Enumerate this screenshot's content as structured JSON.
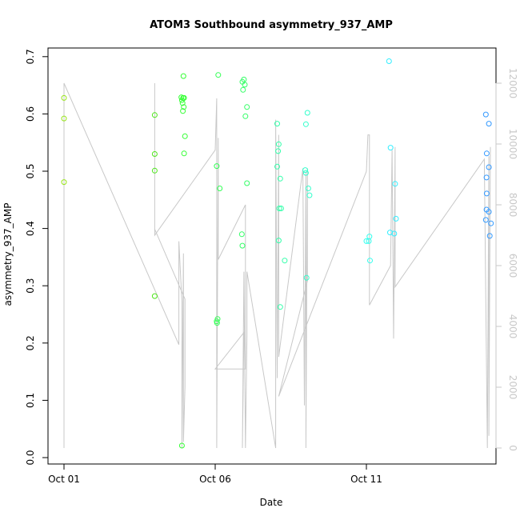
{
  "chart_data": {
    "type": "scatter",
    "title": "ATOM3 Southbound asymmetry_937_AMP",
    "xlabel": "Date",
    "ylabel": "asymmetry_937_AMP",
    "x_ticks": [
      {
        "day": 1,
        "label": "Oct 01"
      },
      {
        "day": 6,
        "label": "Oct 06"
      },
      {
        "day": 11,
        "label": "Oct 11"
      }
    ],
    "xlim": [
      1,
      15.3
    ],
    "ylim": [
      0,
      0.7
    ],
    "y_ticks": [
      "0.0",
      "0.1",
      "0.2",
      "0.3",
      "0.4",
      "0.5",
      "0.6",
      "0.7"
    ],
    "y2_ticks": [
      "0",
      "2000",
      "4000",
      "6000",
      "8000",
      "10000",
      "12000"
    ],
    "y2lim": [
      0,
      12000
    ],
    "grid": false,
    "points_series": {
      "marker": "open-circle",
      "color_scale": "day of month, green (Oct 01) to blue (Oct 15)",
      "points": [
        {
          "day": 1.0,
          "y": 0.628,
          "color": "#99e619"
        },
        {
          "day": 1.0,
          "y": 0.592,
          "color": "#99e619"
        },
        {
          "day": 1.0,
          "y": 0.481,
          "color": "#99e619"
        },
        {
          "day": 4.0,
          "y": 0.598,
          "color": "#4de61a"
        },
        {
          "day": 4.0,
          "y": 0.53,
          "color": "#4de61a"
        },
        {
          "day": 4.0,
          "y": 0.501,
          "color": "#4de61a"
        },
        {
          "day": 4.0,
          "y": 0.282,
          "color": "#4de61a"
        },
        {
          "day": 4.95,
          "y": 0.666,
          "color": "#33ff33"
        },
        {
          "day": 4.88,
          "y": 0.629,
          "color": "#33ff33"
        },
        {
          "day": 4.94,
          "y": 0.628,
          "color": "#33ff33"
        },
        {
          "day": 4.9,
          "y": 0.624,
          "color": "#33ff33"
        },
        {
          "day": 4.97,
          "y": 0.628,
          "color": "#33ff33"
        },
        {
          "day": 4.92,
          "y": 0.619,
          "color": "#33ff33"
        },
        {
          "day": 4.96,
          "y": 0.612,
          "color": "#33ff33"
        },
        {
          "day": 4.93,
          "y": 0.605,
          "color": "#33ff33"
        },
        {
          "day": 5.0,
          "y": 0.561,
          "color": "#33ff33"
        },
        {
          "day": 4.97,
          "y": 0.531,
          "color": "#33ff33"
        },
        {
          "day": 4.9,
          "y": 0.021,
          "color": "#33ff33"
        },
        {
          "day": 6.1,
          "y": 0.668,
          "color": "#33ff55"
        },
        {
          "day": 6.05,
          "y": 0.509,
          "color": "#33ff55"
        },
        {
          "day": 6.15,
          "y": 0.47,
          "color": "#33ff55"
        },
        {
          "day": 6.08,
          "y": 0.242,
          "color": "#33ff55"
        },
        {
          "day": 6.05,
          "y": 0.238,
          "color": "#33ff55"
        },
        {
          "day": 6.06,
          "y": 0.235,
          "color": "#33ff55"
        },
        {
          "day": 6.95,
          "y": 0.66,
          "color": "#33ff66"
        },
        {
          "day": 6.9,
          "y": 0.656,
          "color": "#33ff66"
        },
        {
          "day": 6.98,
          "y": 0.651,
          "color": "#33ff66"
        },
        {
          "day": 6.92,
          "y": 0.642,
          "color": "#33ff66"
        },
        {
          "day": 7.05,
          "y": 0.612,
          "color": "#33ff66"
        },
        {
          "day": 7.0,
          "y": 0.596,
          "color": "#33ff66"
        },
        {
          "day": 7.05,
          "y": 0.479,
          "color": "#33ff66"
        },
        {
          "day": 6.88,
          "y": 0.39,
          "color": "#33ff66"
        },
        {
          "day": 6.9,
          "y": 0.37,
          "color": "#33ff66"
        },
        {
          "day": 8.05,
          "y": 0.583,
          "color": "#33ffaa"
        },
        {
          "day": 8.1,
          "y": 0.547,
          "color": "#33ffaa"
        },
        {
          "day": 8.08,
          "y": 0.535,
          "color": "#33ffaa"
        },
        {
          "day": 8.05,
          "y": 0.508,
          "color": "#33ffaa"
        },
        {
          "day": 8.15,
          "y": 0.487,
          "color": "#33ffaa"
        },
        {
          "day": 8.12,
          "y": 0.435,
          "color": "#33ffaa"
        },
        {
          "day": 8.18,
          "y": 0.435,
          "color": "#33ffaa"
        },
        {
          "day": 8.1,
          "y": 0.379,
          "color": "#33ffaa"
        },
        {
          "day": 8.3,
          "y": 0.344,
          "color": "#33ffaa"
        },
        {
          "day": 8.15,
          "y": 0.263,
          "color": "#33ffaa"
        },
        {
          "day": 9.05,
          "y": 0.602,
          "color": "#33ffcc"
        },
        {
          "day": 9.0,
          "y": 0.582,
          "color": "#33ffcc"
        },
        {
          "day": 8.98,
          "y": 0.502,
          "color": "#33ffcc"
        },
        {
          "day": 9.0,
          "y": 0.497,
          "color": "#33ffcc"
        },
        {
          "day": 9.08,
          "y": 0.47,
          "color": "#33ffcc"
        },
        {
          "day": 9.12,
          "y": 0.458,
          "color": "#33ffcc"
        },
        {
          "day": 9.02,
          "y": 0.314,
          "color": "#33ffcc"
        },
        {
          "day": 11.1,
          "y": 0.386,
          "color": "#33ffee"
        },
        {
          "day": 11.0,
          "y": 0.378,
          "color": "#33ffee"
        },
        {
          "day": 11.08,
          "y": 0.378,
          "color": "#33ffee"
        },
        {
          "day": 11.12,
          "y": 0.344,
          "color": "#33ffee"
        },
        {
          "day": 11.75,
          "y": 0.692,
          "color": "#33eeff"
        },
        {
          "day": 11.8,
          "y": 0.541,
          "color": "#33eeff"
        },
        {
          "day": 11.95,
          "y": 0.478,
          "color": "#33eeff"
        },
        {
          "day": 11.98,
          "y": 0.417,
          "color": "#33eeff"
        },
        {
          "day": 11.78,
          "y": 0.393,
          "color": "#33eeff"
        },
        {
          "day": 11.92,
          "y": 0.391,
          "color": "#33eeff"
        },
        {
          "day": 14.95,
          "y": 0.599,
          "color": "#3399ff"
        },
        {
          "day": 15.05,
          "y": 0.583,
          "color": "#3399ff"
        },
        {
          "day": 14.98,
          "y": 0.531,
          "color": "#3399ff"
        },
        {
          "day": 15.05,
          "y": 0.507,
          "color": "#3399ff"
        },
        {
          "day": 14.97,
          "y": 0.489,
          "color": "#3399ff"
        },
        {
          "day": 14.98,
          "y": 0.461,
          "color": "#3399ff"
        },
        {
          "day": 14.97,
          "y": 0.433,
          "color": "#3399ff"
        },
        {
          "day": 15.05,
          "y": 0.429,
          "color": "#3399ff"
        },
        {
          "day": 14.95,
          "y": 0.415,
          "color": "#3399ff"
        },
        {
          "day": 15.12,
          "y": 0.409,
          "color": "#3399ff"
        },
        {
          "day": 15.08,
          "y": 0.387,
          "color": "#3399ff"
        }
      ]
    },
    "line_series": {
      "axis": "right",
      "color": "#c8c8c8",
      "points": [
        [
          1.0,
          0
        ],
        [
          1.0,
          12000
        ],
        [
          4.8,
          3400
        ],
        [
          4.8,
          6800
        ],
        [
          4.9,
          4800
        ],
        [
          4.9,
          0
        ],
        [
          4.95,
          6400
        ],
        [
          4.95,
          200
        ],
        [
          5.0,
          2000
        ],
        [
          5.0,
          4900
        ],
        [
          4.0,
          7200
        ],
        [
          4.0,
          12000
        ],
        [
          4.0,
          7000
        ],
        [
          6.0,
          9800
        ],
        [
          6.05,
          11500
        ],
        [
          6.05,
          0
        ],
        [
          6.1,
          10200
        ],
        [
          6.1,
          6200
        ],
        [
          7.0,
          8000
        ],
        [
          7.0,
          2600
        ],
        [
          6.0,
          2600
        ],
        [
          6.95,
          3800
        ],
        [
          6.9,
          0
        ],
        [
          6.95,
          5800
        ],
        [
          7.0,
          0
        ],
        [
          7.05,
          3700
        ],
        [
          7.05,
          5800
        ],
        [
          8.0,
          0
        ],
        [
          8.0,
          10800
        ],
        [
          8.05,
          2300
        ],
        [
          8.1,
          10300
        ],
        [
          8.1,
          3000
        ],
        [
          8.9,
          9200
        ],
        [
          8.95,
          1400
        ],
        [
          9.0,
          9100
        ],
        [
          9.0,
          0
        ],
        [
          9.05,
          9200
        ],
        [
          9.05,
          5500
        ],
        [
          8.1,
          1700
        ],
        [
          11.0,
          9100
        ],
        [
          11.05,
          10300
        ],
        [
          11.1,
          10300
        ],
        [
          11.1,
          4700
        ],
        [
          11.8,
          6000
        ],
        [
          11.85,
          9800
        ],
        [
          11.9,
          3600
        ],
        [
          11.95,
          9900
        ],
        [
          11.95,
          5300
        ],
        [
          14.9,
          9500
        ],
        [
          15.0,
          0
        ],
        [
          15.05,
          9600
        ],
        [
          15.05,
          400
        ],
        [
          15.1,
          9900
        ]
      ]
    }
  }
}
